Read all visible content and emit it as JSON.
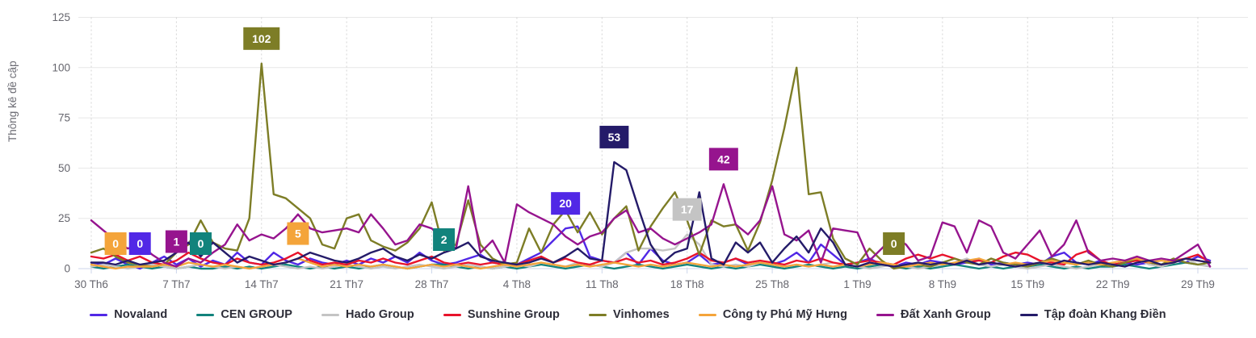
{
  "chart_data": {
    "type": "line",
    "ylabel": "Thông kê đề cập",
    "ylim": [
      0,
      125
    ],
    "y_ticks": [
      0,
      25,
      50,
      75,
      100,
      125
    ],
    "x_tick_labels": [
      "30 Th6",
      "7 Th7",
      "14 Th7",
      "21 Th7",
      "28 Th7",
      "4 Th8",
      "11 Th8",
      "18 Th8",
      "25 Th8",
      "1 Th9",
      "8 Th9",
      "15 Th9",
      "22 Th9",
      "29 Th9"
    ],
    "x_tick_indices": [
      0,
      7,
      14,
      21,
      28,
      35,
      42,
      49,
      56,
      63,
      70,
      77,
      84,
      91
    ],
    "grid": {
      "horizontal": "solid",
      "vertical": "dotted",
      "h_color": "#e7e7e7",
      "v_color": "#d4d4d4",
      "axis_color": "#ccd6eb"
    },
    "legend_position": "bottom-center",
    "series": [
      {
        "name": "Novaland",
        "color": "#5128e6",
        "values": [
          3,
          2,
          5,
          2,
          0,
          3,
          6,
          2,
          5,
          1,
          4,
          2,
          8,
          3,
          2,
          8,
          4,
          2,
          5,
          3,
          2,
          4,
          2,
          5,
          3,
          6,
          3,
          8,
          4,
          2,
          3,
          5,
          7,
          3,
          2,
          2,
          5,
          8,
          14,
          20,
          21,
          6,
          4,
          3,
          8,
          2,
          10,
          4,
          2,
          3,
          7,
          2,
          3,
          5,
          2,
          3,
          2,
          4,
          8,
          3,
          12,
          7,
          2,
          3,
          5,
          2,
          1,
          3,
          2,
          4,
          3,
          2,
          3,
          5,
          2,
          3,
          2,
          3,
          2,
          6,
          8,
          3,
          2,
          4,
          2,
          3,
          2,
          3,
          2,
          4,
          3,
          6,
          4
        ]
      },
      {
        "name": "CEN GROUP",
        "color": "#12837c",
        "values": [
          1,
          0,
          1,
          2,
          1,
          0,
          1,
          0,
          1,
          0,
          0,
          1,
          0,
          1,
          0,
          1,
          2,
          1,
          0,
          1,
          0,
          1,
          0,
          1,
          2,
          1,
          0,
          1,
          2,
          2,
          1,
          0,
          1,
          0,
          1,
          0,
          1,
          2,
          1,
          0,
          1,
          2,
          1,
          0,
          1,
          2,
          1,
          0,
          1,
          2,
          1,
          0,
          1,
          0,
          1,
          2,
          1,
          0,
          1,
          2,
          1,
          0,
          1,
          0,
          1,
          2,
          1,
          0,
          1,
          0,
          1,
          2,
          1,
          0,
          1,
          0,
          1,
          1,
          2,
          1,
          0,
          1,
          0,
          1,
          1,
          2,
          1,
          0,
          1,
          2,
          3,
          2,
          3
        ]
      },
      {
        "name": "Hado Group",
        "color": "#c4c4c4",
        "values": [
          1,
          2,
          1,
          0,
          1,
          2,
          1,
          0,
          1,
          2,
          1,
          0,
          1,
          0,
          1,
          2,
          1,
          0,
          1,
          0,
          1,
          2,
          1,
          0,
          1,
          0,
          1,
          2,
          1,
          0,
          1,
          2,
          1,
          0,
          1,
          2,
          1,
          3,
          2,
          1,
          3,
          2,
          1,
          3,
          8,
          10,
          10,
          9,
          10,
          17,
          12,
          2,
          1,
          2,
          1,
          3,
          2,
          1,
          2,
          1,
          2,
          3,
          2,
          1,
          0,
          1,
          2,
          1,
          0,
          1,
          2,
          3,
          5,
          2,
          1,
          2,
          1,
          0,
          1,
          2,
          1,
          0,
          1,
          2,
          1,
          3,
          5,
          2,
          1,
          3,
          5,
          2,
          1
        ]
      },
      {
        "name": "Sunshine Group",
        "color": "#e8132b",
        "values": [
          6,
          5,
          7,
          4,
          6,
          3,
          2,
          4,
          8,
          5,
          3,
          2,
          5,
          3,
          2,
          3,
          5,
          8,
          4,
          2,
          3,
          2,
          4,
          3,
          5,
          3,
          2,
          4,
          6,
          3,
          2,
          3,
          2,
          3,
          2,
          2,
          4,
          6,
          3,
          5,
          3,
          2,
          4,
          3,
          5,
          3,
          4,
          2,
          3,
          5,
          8,
          4,
          3,
          5,
          3,
          4,
          3,
          2,
          4,
          3,
          5,
          3,
          2,
          3,
          4,
          3,
          2,
          5,
          7,
          5,
          7,
          5,
          3,
          4,
          3,
          6,
          8,
          7,
          4,
          3,
          2,
          7,
          9,
          4,
          2,
          3,
          4,
          3,
          2,
          4,
          5,
          7,
          3
        ]
      },
      {
        "name": "Vinhomes",
        "color": "#7d7d26",
        "values": [
          8,
          10,
          6,
          3,
          2,
          1,
          2,
          8,
          12,
          24,
          13,
          10,
          9,
          25,
          102,
          37,
          35,
          30,
          25,
          12,
          10,
          25,
          27,
          14,
          11,
          9,
          13,
          20,
          33,
          9,
          12,
          34,
          12,
          5,
          2,
          3,
          20,
          8,
          22,
          29,
          18,
          28,
          17,
          25,
          31,
          9,
          21,
          30,
          38,
          24,
          7,
          24,
          21,
          22,
          9,
          23,
          44,
          70,
          100,
          37,
          38,
          15,
          5,
          2,
          10,
          4,
          0,
          1,
          2,
          1,
          3,
          5,
          3,
          2,
          5,
          3,
          2,
          1,
          3,
          5,
          3,
          2,
          4,
          2,
          1,
          3,
          5,
          3,
          2,
          5,
          3,
          2,
          3
        ]
      },
      {
        "name": "Công ty Phú Mỹ Hưng",
        "color": "#f4a43a",
        "values": [
          2,
          1,
          0,
          1,
          1,
          1,
          2,
          1,
          3,
          2,
          1,
          2,
          1,
          0,
          1,
          2,
          3,
          5,
          3,
          1,
          2,
          1,
          2,
          1,
          2,
          1,
          0,
          1,
          2,
          1,
          2,
          1,
          0,
          1,
          2,
          1,
          2,
          3,
          2,
          1,
          2,
          1,
          2,
          3,
          2,
          1,
          2,
          1,
          2,
          3,
          2,
          1,
          2,
          1,
          2,
          3,
          2,
          1,
          2,
          1,
          2,
          1,
          2,
          1,
          2,
          3,
          2,
          1,
          2,
          3,
          2,
          3,
          4,
          5,
          3,
          2,
          3,
          2,
          3,
          4,
          3,
          2,
          3,
          2,
          3,
          4,
          5,
          3,
          4,
          3,
          5,
          4,
          3
        ]
      },
      {
        "name": "Đất Xanh Group",
        "color": "#96148e",
        "values": [
          24,
          19,
          14,
          10,
          12,
          7,
          3,
          1,
          5,
          3,
          8,
          12,
          22,
          14,
          17,
          15,
          20,
          27,
          20,
          18,
          19,
          20,
          18,
          27,
          20,
          12,
          14,
          22,
          20,
          14,
          10,
          41,
          8,
          14,
          3,
          32,
          28,
          25,
          22,
          16,
          12,
          16,
          18,
          25,
          29,
          18,
          20,
          15,
          12,
          15,
          18,
          22,
          42,
          22,
          17,
          24,
          41,
          17,
          14,
          19,
          3,
          20,
          19,
          18,
          4,
          10,
          16,
          12,
          4,
          6,
          23,
          21,
          8,
          24,
          21,
          8,
          5,
          12,
          19,
          6,
          12,
          24,
          8,
          4,
          5,
          4,
          6,
          4,
          5,
          4,
          8,
          12,
          1
        ]
      },
      {
        "name": "Tập đoàn Khang Điền",
        "color": "#241b69",
        "values": [
          3,
          3,
          2,
          4,
          2,
          3,
          4,
          8,
          13,
          6,
          13,
          8,
          3,
          6,
          4,
          2,
          3,
          5,
          8,
          6,
          4,
          3,
          5,
          8,
          10,
          6,
          4,
          7,
          5,
          8,
          10,
          13,
          6,
          4,
          3,
          2,
          3,
          5,
          3,
          6,
          10,
          5,
          4,
          53,
          49,
          30,
          12,
          3,
          8,
          10,
          38,
          5,
          2,
          13,
          8,
          13,
          3,
          10,
          16,
          8,
          20,
          13,
          2,
          1,
          3,
          2,
          1,
          2,
          3,
          2,
          3,
          2,
          4,
          2,
          3,
          2,
          1,
          2,
          3,
          2,
          4,
          3,
          2,
          3,
          2,
          1,
          3,
          4,
          2,
          3,
          5,
          4,
          3
        ]
      }
    ],
    "annotations": [
      {
        "series": "Công ty Phú Mỹ Hưng",
        "index": 2,
        "value": 0,
        "label": "0"
      },
      {
        "series": "Novaland",
        "index": 4,
        "value": 0,
        "label": "0"
      },
      {
        "series": "Đất Xanh Group",
        "index": 7,
        "value": 1,
        "label": "1"
      },
      {
        "series": "CEN GROUP",
        "index": 9,
        "value": 0,
        "label": "0"
      },
      {
        "series": "Vinhomes",
        "index": 14,
        "value": 102,
        "label": "102"
      },
      {
        "series": "Công ty Phú Mỹ Hưng",
        "index": 17,
        "value": 5,
        "label": "5"
      },
      {
        "series": "CEN GROUP",
        "index": 29,
        "value": 2,
        "label": "2"
      },
      {
        "series": "Novaland",
        "index": 39,
        "value": 20,
        "label": "20"
      },
      {
        "series": "Tập đoàn Khang Điền",
        "index": 43,
        "value": 53,
        "label": "53"
      },
      {
        "series": "Hado Group",
        "index": 49,
        "value": 17,
        "label": "17"
      },
      {
        "series": "Đất Xanh Group",
        "index": 52,
        "value": 42,
        "label": "42"
      },
      {
        "series": "Vinhomes",
        "index": 66,
        "value": 0,
        "label": "0"
      }
    ]
  }
}
